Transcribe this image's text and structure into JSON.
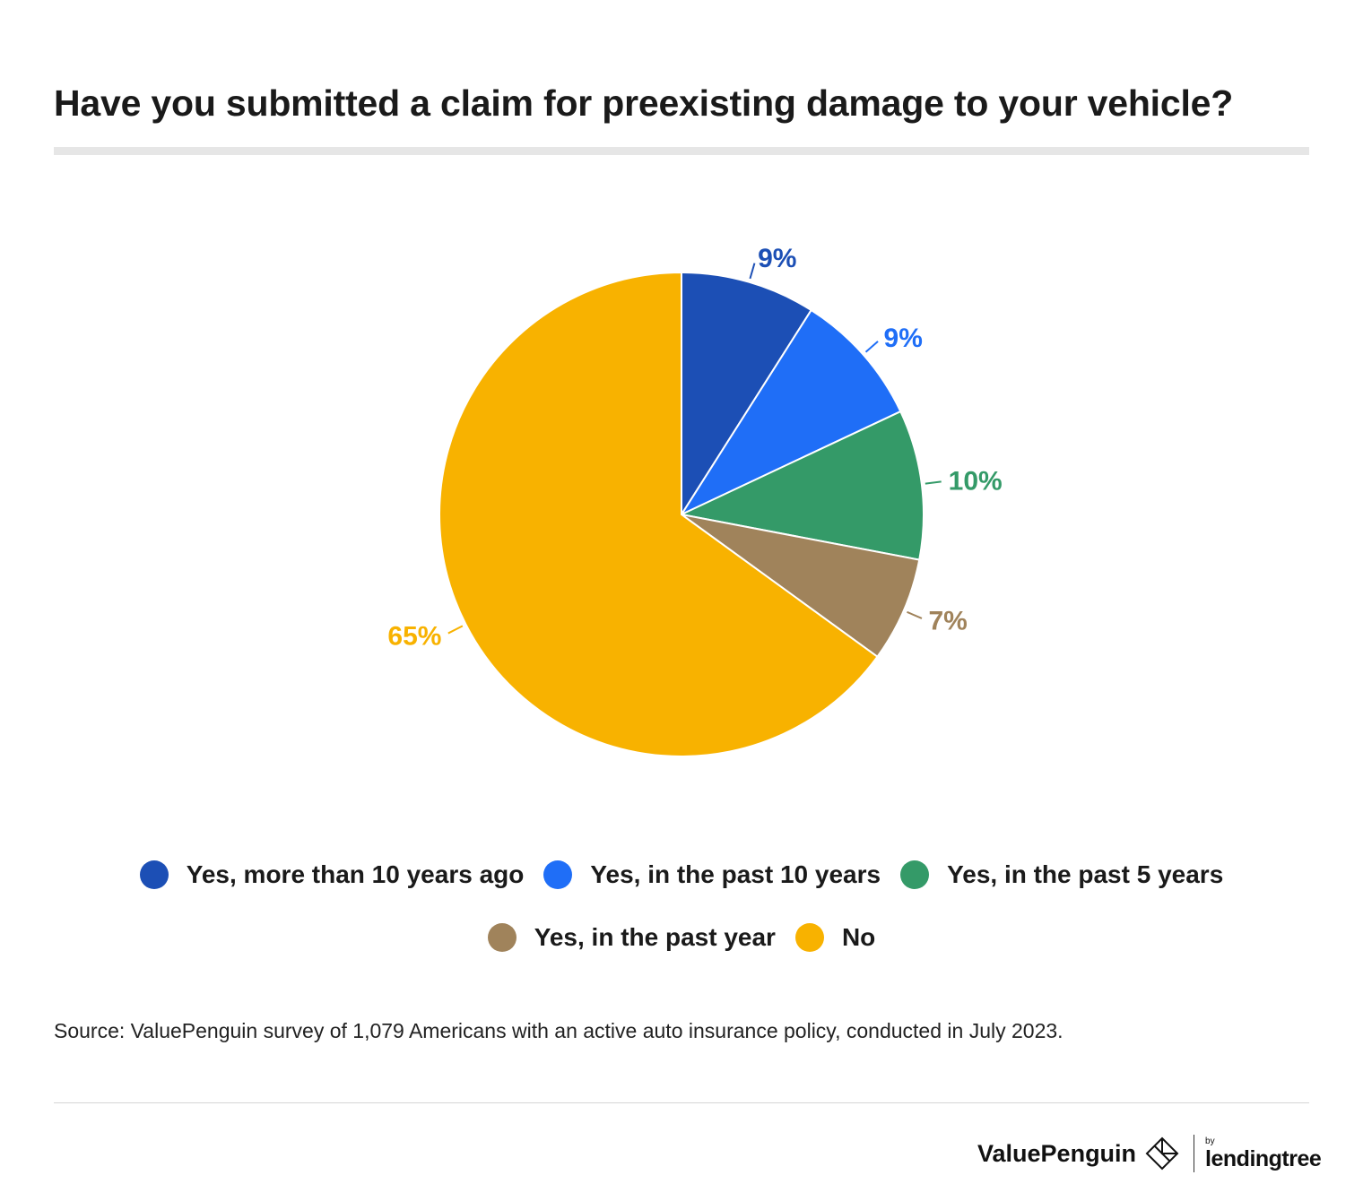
{
  "title": "Have you submitted a claim for preexisting damage to your vehicle?",
  "chart_data": {
    "type": "pie",
    "title": "Have you submitted a claim for preexisting damage to your vehicle?",
    "categories": [
      "Yes, more than 10 years ago",
      "Yes, in the past 10 years",
      "Yes, in the past 5 years",
      "Yes, in the past year",
      "No"
    ],
    "values": [
      9,
      9,
      10,
      7,
      65
    ],
    "labels": [
      "9%",
      "9%",
      "10%",
      "7%",
      "65%"
    ],
    "colors": [
      "#1c4fb5",
      "#1f6ef7",
      "#349a68",
      "#a0835b",
      "#f8b200"
    ],
    "start_angle": "12 o'clock",
    "direction": "clockwise",
    "legend_position": "bottom"
  },
  "legend": {
    "row1": [
      {
        "label": "Yes, more than 10 years ago",
        "color": "#1c4fb5"
      },
      {
        "label": "Yes, in the past 10 years",
        "color": "#1f6ef7"
      },
      {
        "label": "Yes, in the past 5 years",
        "color": "#349a68"
      }
    ],
    "row2": [
      {
        "label": "Yes, in the past year",
        "color": "#a0835b"
      },
      {
        "label": "No",
        "color": "#f8b200"
      }
    ]
  },
  "source": "Source: ValuePenguin survey of 1,079 Americans with an active auto insurance policy, conducted in July 2023.",
  "footer": {
    "brand": "ValuePenguin",
    "partner_by": "by",
    "partner": "lendingtree"
  }
}
